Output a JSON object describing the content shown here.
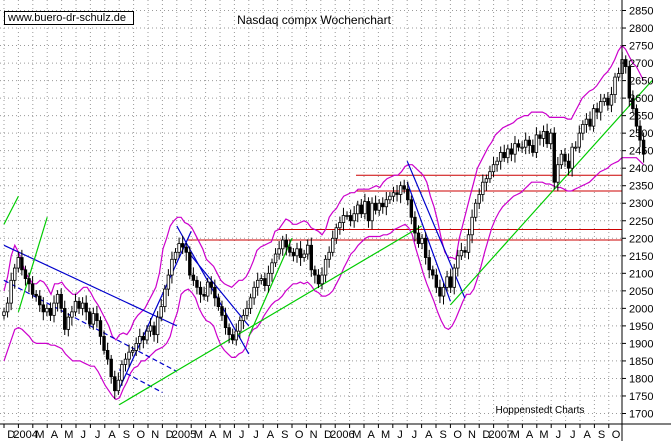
{
  "chart_data": {
    "type": "candlestick",
    "title": "Nasdaq compx Wochenchart",
    "source_label": "www.buero-dr-schulz.de",
    "credit": "Hoppenstedt Charts",
    "y_axis": {
      "position": "right",
      "ylim": [
        1670,
        2880
      ],
      "ticks": [
        1700,
        1750,
        1800,
        1850,
        1900,
        1950,
        2000,
        2050,
        2100,
        2150,
        2200,
        2250,
        2300,
        2350,
        2400,
        2450,
        2500,
        2550,
        2600,
        2650,
        2700,
        2750,
        2800,
        2850
      ]
    },
    "x_axis": {
      "start": "2003-12",
      "end": "2007-10",
      "tick_labels": [
        "D",
        "2004",
        "M",
        "A",
        "M",
        "J",
        "J",
        "A",
        "S",
        "O",
        "N",
        "D",
        "2005",
        "M",
        "A",
        "M",
        "J",
        "J",
        "A",
        "S",
        "O",
        "N",
        "D",
        "2006",
        "M",
        "A",
        "M",
        "J",
        "J",
        "A",
        "S",
        "O",
        "N",
        "D",
        "2007",
        "M",
        "A",
        "M",
        "J",
        "J",
        "A",
        "S",
        "O"
      ]
    },
    "grid": true,
    "weekly_closes": [
      1990,
      2015,
      2080,
      2115,
      2145,
      2110,
      2085,
      2070,
      2040,
      2035,
      2010,
      1990,
      2000,
      1980,
      2015,
      2040,
      2000,
      1940,
      1975,
      1990,
      2020,
      2000,
      2015,
      1990,
      1955,
      1985,
      1965,
      1920,
      1880,
      1855,
      1805,
      1765,
      1795,
      1840,
      1855,
      1875,
      1880,
      1900,
      1920,
      1910,
      1935,
      1950,
      1925,
      1975,
      2005,
      2055,
      2095,
      2140,
      2160,
      2185,
      2175,
      2160,
      2095,
      2080,
      2060,
      2040,
      2035,
      2075,
      2060,
      2030,
      2005,
      1980,
      1945,
      1925,
      1910,
      1935,
      1965,
      1980,
      2000,
      2030,
      2060,
      2080,
      2085,
      2065,
      2100,
      2130,
      2155,
      2170,
      2195,
      2175,
      2160,
      2150,
      2170,
      2145,
      2155,
      2180,
      2110,
      2095,
      2070,
      2095,
      2140,
      2160,
      2200,
      2230,
      2245,
      2265,
      2265,
      2250,
      2270,
      2295,
      2270,
      2305,
      2250,
      2300,
      2280,
      2300,
      2290,
      2310,
      2320,
      2330,
      2325,
      2350,
      2340,
      2310,
      2260,
      2215,
      2185,
      2200,
      2145,
      2110,
      2095,
      2060,
      2035,
      2060,
      2090,
      2060,
      2115,
      2150,
      2165,
      2160,
      2210,
      2260,
      2300,
      2325,
      2360,
      2370,
      2390,
      2410,
      2420,
      2445,
      2430,
      2455,
      2440,
      2470,
      2460,
      2460,
      2480,
      2465,
      2445,
      2495,
      2485,
      2505,
      2470,
      2500,
      2360,
      2410,
      2440,
      2420,
      2400,
      2460,
      2460,
      2500,
      2525,
      2540,
      2520,
      2570,
      2560,
      2590,
      2600,
      2580,
      2610,
      2660,
      2670,
      2710,
      2690,
      2600,
      2570,
      2520,
      2480,
      2440
    ],
    "bollinger_band": {
      "upper": [
        2050,
        2090,
        2150,
        2180,
        2160,
        2130,
        2100,
        2085,
        2070,
        2070,
        2080,
        2075,
        2060,
        2040,
        2070,
        2070,
        2075,
        2060,
        2050,
        2040,
        2040,
        2050,
        2060,
        2060,
        2045,
        2025,
        2010,
        1990,
        1970,
        1950,
        1920,
        1910,
        1925,
        1930,
        1925,
        1940,
        1965,
        1980,
        1990,
        2000,
        2020,
        2040,
        2060,
        2100,
        2170,
        2200,
        2235,
        2250,
        2260,
        2260,
        2245,
        2240,
        2230,
        2210,
        2190,
        2170,
        2140,
        2130,
        2120,
        2100,
        2080,
        2070,
        2065,
        2060,
        2070,
        2080,
        2080,
        2090,
        2110,
        2135,
        2165,
        2175,
        2180,
        2185,
        2190,
        2220,
        2225,
        2240,
        2255,
        2250,
        2240,
        2240,
        2245,
        2250,
        2245,
        2230,
        2225,
        2220,
        2210,
        2225,
        2260,
        2275,
        2285,
        2305,
        2320,
        2325,
        2330,
        2330,
        2340,
        2340,
        2340,
        2340,
        2345,
        2350,
        2345,
        2360,
        2370,
        2375,
        2380,
        2380,
        2390,
        2405,
        2410,
        2410,
        2400,
        2390,
        2380,
        2360,
        2320,
        2290,
        2250,
        2200,
        2160,
        2145,
        2145,
        2140,
        2200,
        2240,
        2280,
        2320,
        2360,
        2400,
        2420,
        2440,
        2460,
        2475,
        2495,
        2505,
        2515,
        2520,
        2525,
        2530,
        2540,
        2545,
        2550,
        2550,
        2560,
        2560,
        2560,
        2560,
        2555,
        2545,
        2545,
        2545,
        2545,
        2545,
        2540,
        2540,
        2560,
        2580,
        2600,
        2610,
        2620,
        2625,
        2635,
        2650,
        2665,
        2675,
        2690,
        2710,
        2735,
        2750,
        2740,
        2720,
        2700,
        2690,
        2670,
        2650
      ],
      "lower": [
        1850,
        1880,
        1910,
        1940,
        1945,
        1940,
        1930,
        1920,
        1905,
        1900,
        1900,
        1900,
        1900,
        1895,
        1895,
        1890,
        1885,
        1870,
        1860,
        1850,
        1850,
        1850,
        1845,
        1840,
        1835,
        1835,
        1820,
        1800,
        1780,
        1765,
        1750,
        1740,
        1745,
        1770,
        1790,
        1815,
        1830,
        1835,
        1850,
        1850,
        1860,
        1870,
        1880,
        1885,
        1890,
        1900,
        1920,
        1960,
        1990,
        2040,
        2050,
        2055,
        2045,
        2030,
        2000,
        1980,
        1965,
        1960,
        1950,
        1920,
        1895,
        1880,
        1870,
        1860,
        1860,
        1870,
        1875,
        1890,
        1925,
        1940,
        1945,
        1960,
        1980,
        1995,
        2010,
        2020,
        2025,
        2035,
        2050,
        2060,
        2070,
        2070,
        2075,
        2070,
        2075,
        2065,
        2050,
        2045,
        2035,
        2035,
        2040,
        2050,
        2070,
        2090,
        2115,
        2135,
        2155,
        2165,
        2180,
        2190,
        2200,
        2205,
        2205,
        2205,
        2205,
        2210,
        2210,
        2215,
        2225,
        2230,
        2235,
        2240,
        2230,
        2210,
        2170,
        2135,
        2100,
        2070,
        2045,
        2020,
        1990,
        1965,
        1945,
        1940,
        1950,
        1970,
        1995,
        2020,
        2040,
        2040,
        2055,
        2085,
        2120,
        2160,
        2195,
        2230,
        2255,
        2275,
        2290,
        2300,
        2310,
        2320,
        2325,
        2330,
        2340,
        2350,
        2360,
        2360,
        2360,
        2360,
        2355,
        2355,
        2350,
        2345,
        2345,
        2340,
        2335,
        2335,
        2340,
        2345,
        2350,
        2355,
        2360,
        2370,
        2380,
        2390,
        2395,
        2400,
        2410,
        2415,
        2420,
        2430,
        2430,
        2430,
        2430,
        2430,
        2420,
        2410
      ]
    },
    "horizontal_lines": [
      2380,
      2335,
      2225,
      2195
    ],
    "trendlines": [
      {
        "color": "#0000cc",
        "from": [
          "2003-12",
          2180
        ],
        "to": [
          "2004-12",
          1950
        ]
      },
      {
        "color": "#0000cc",
        "dashed": true,
        "from": [
          "2003-12",
          2080
        ],
        "to": [
          "2004-12",
          1820
        ]
      },
      {
        "color": "#0000cc",
        "dashed": true,
        "from": [
          "2004-08",
          1825
        ],
        "to": [
          "2004-11",
          1760
        ]
      },
      {
        "color": "#0000cc",
        "from": [
          "2004-08",
          1770
        ],
        "to": [
          "2005-01",
          2220
        ]
      },
      {
        "color": "#0000cc",
        "from": [
          "2004-12",
          2235
        ],
        "to": [
          "2005-05",
          1870
        ]
      },
      {
        "color": "#0000cc",
        "from": [
          "2005-01",
          2150
        ],
        "to": [
          "2005-05",
          1950
        ]
      },
      {
        "color": "#0000cc",
        "from": [
          "2006-04",
          2420
        ],
        "to": [
          "2006-08",
          2030
        ]
      },
      {
        "color": "#0000cc",
        "from": [
          "2006-04",
          2360
        ],
        "to": [
          "2006-07",
          2020
        ]
      },
      {
        "color": "#00cc00",
        "from": [
          "2003-12",
          2240
        ],
        "to": [
          "2004-01",
          2320
        ]
      },
      {
        "color": "#00cc00",
        "from": [
          "2004-01",
          1990
        ],
        "to": [
          "2004-03",
          2260
        ]
      },
      {
        "color": "#00cc00",
        "from": [
          "2004-08",
          1725
        ],
        "to": [
          "2006-05",
          2235
        ]
      },
      {
        "color": "#00cc00",
        "from": [
          "2005-05",
          1920
        ],
        "to": [
          "2005-08",
          2200
        ]
      },
      {
        "color": "#00cc00",
        "from": [
          "2006-07",
          2010
        ],
        "to": [
          "2007-09",
          2650
        ]
      }
    ]
  }
}
